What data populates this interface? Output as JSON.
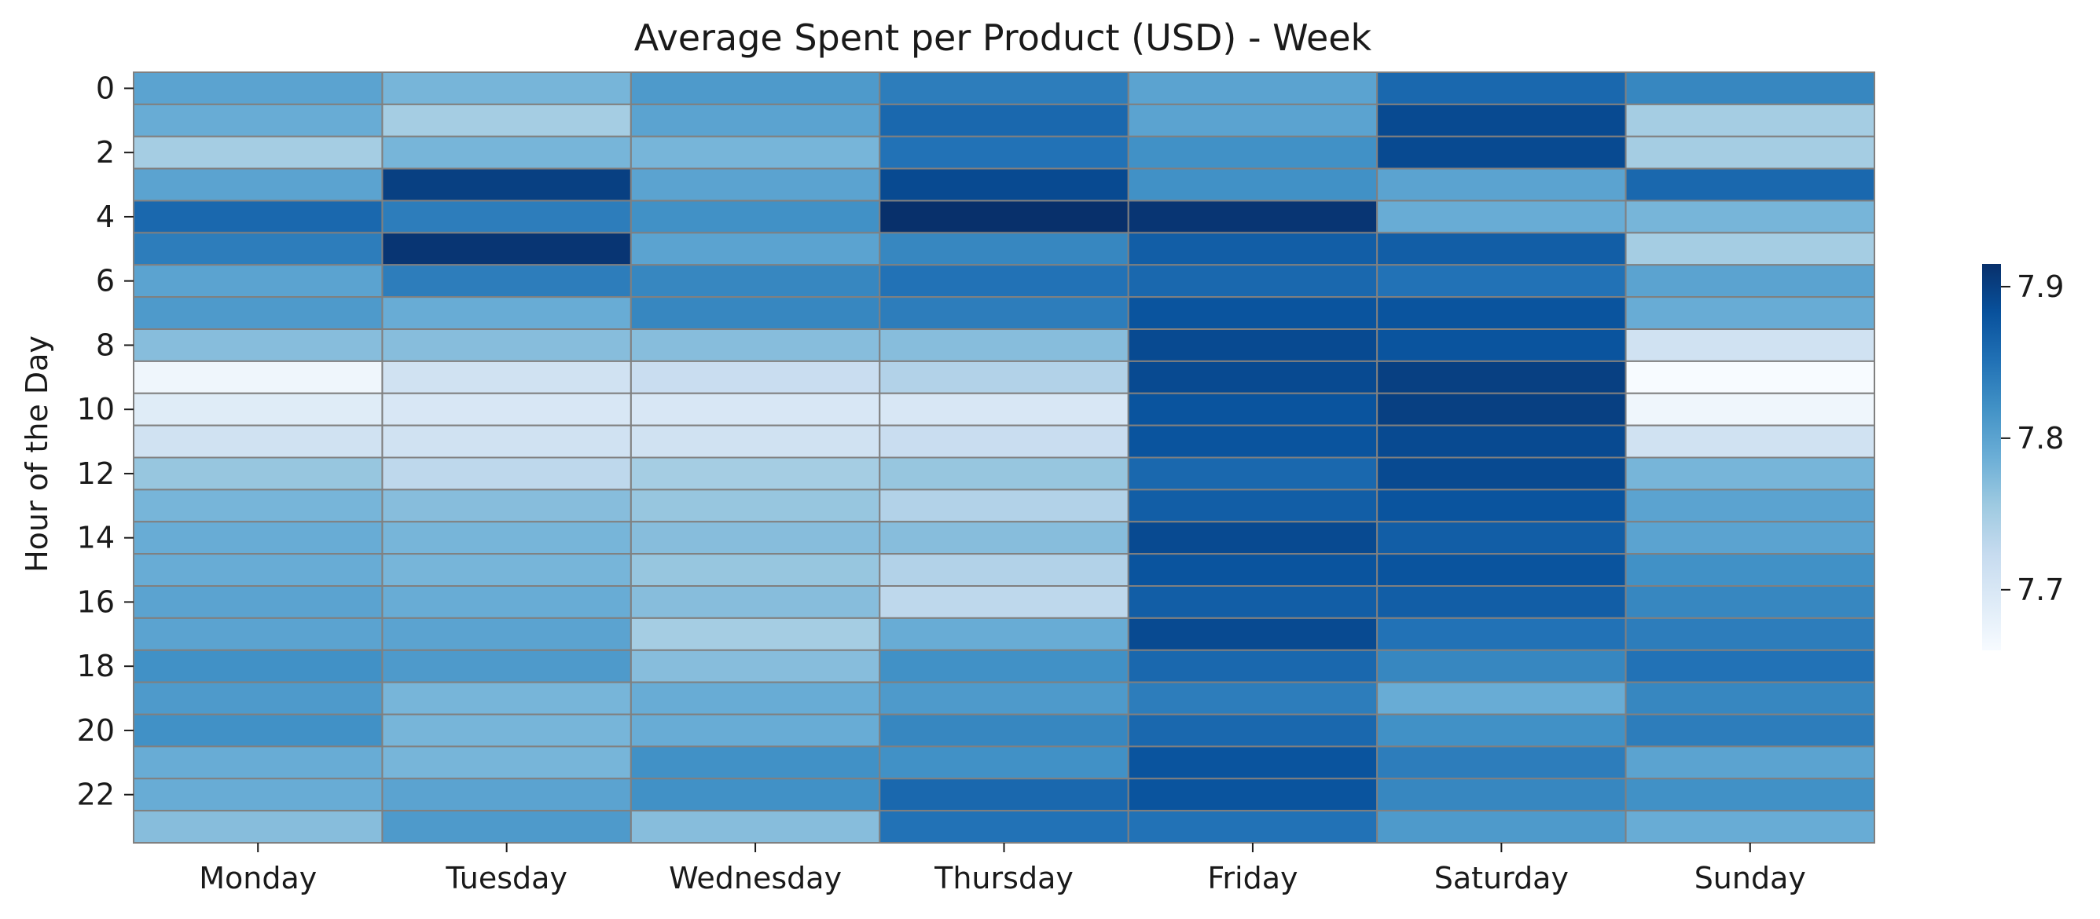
{
  "chart_data": {
    "type": "heatmap",
    "title": "Average Spent per Product (USD) - Week",
    "xlabel": "",
    "ylabel": "Hour of the Day",
    "x_categories": [
      "Monday",
      "Tuesday",
      "Wednesday",
      "Thursday",
      "Friday",
      "Saturday",
      "Sunday"
    ],
    "y_categories": [
      0,
      1,
      2,
      3,
      4,
      5,
      6,
      7,
      8,
      9,
      10,
      11,
      12,
      13,
      14,
      15,
      16,
      17,
      18,
      19,
      20,
      21,
      22,
      23
    ],
    "y_tick_labels": [
      "0",
      "2",
      "4",
      "6",
      "8",
      "10",
      "12",
      "14",
      "16",
      "18",
      "20",
      "22"
    ],
    "values": [
      [
        7.8,
        7.78,
        7.81,
        7.84,
        7.8,
        7.86,
        7.83
      ],
      [
        7.79,
        7.75,
        7.8,
        7.86,
        7.8,
        7.89,
        7.75
      ],
      [
        7.75,
        7.78,
        7.78,
        7.85,
        7.82,
        7.89,
        7.75
      ],
      [
        7.8,
        7.9,
        7.8,
        7.89,
        7.82,
        7.8,
        7.86
      ],
      [
        7.86,
        7.84,
        7.82,
        7.92,
        7.91,
        7.79,
        7.78
      ],
      [
        7.84,
        7.91,
        7.8,
        7.83,
        7.87,
        7.87,
        7.75
      ],
      [
        7.8,
        7.84,
        7.83,
        7.85,
        7.86,
        7.85,
        7.8
      ],
      [
        7.81,
        7.79,
        7.83,
        7.84,
        7.88,
        7.88,
        7.79
      ],
      [
        7.77,
        7.77,
        7.77,
        7.77,
        7.89,
        7.88,
        7.71
      ],
      [
        7.67,
        7.71,
        7.72,
        7.74,
        7.89,
        7.9,
        7.66
      ],
      [
        7.69,
        7.7,
        7.7,
        7.7,
        7.88,
        7.9,
        7.67
      ],
      [
        7.71,
        7.71,
        7.71,
        7.72,
        7.88,
        7.89,
        7.71
      ],
      [
        7.76,
        7.73,
        7.75,
        7.76,
        7.86,
        7.89,
        7.78
      ],
      [
        7.78,
        7.77,
        7.76,
        7.74,
        7.87,
        7.88,
        7.8
      ],
      [
        7.79,
        7.78,
        7.77,
        7.77,
        7.89,
        7.87,
        7.8
      ],
      [
        7.79,
        7.78,
        7.76,
        7.74,
        7.88,
        7.88,
        7.82
      ],
      [
        7.8,
        7.79,
        7.77,
        7.73,
        7.87,
        7.87,
        7.83
      ],
      [
        7.8,
        7.8,
        7.75,
        7.79,
        7.89,
        7.85,
        7.84
      ],
      [
        7.82,
        7.81,
        7.77,
        7.82,
        7.86,
        7.83,
        7.85
      ],
      [
        7.81,
        7.78,
        7.79,
        7.81,
        7.84,
        7.79,
        7.83
      ],
      [
        7.82,
        7.78,
        7.79,
        7.83,
        7.86,
        7.82,
        7.84
      ],
      [
        7.79,
        7.78,
        7.82,
        7.82,
        7.88,
        7.84,
        7.8
      ],
      [
        7.79,
        7.8,
        7.82,
        7.86,
        7.88,
        7.83,
        7.82
      ],
      [
        7.77,
        7.81,
        7.77,
        7.85,
        7.85,
        7.81,
        7.79
      ]
    ],
    "colormap": "Blues",
    "vmin": 7.66,
    "vmax": 7.915,
    "colorbar_ticks": [
      7.7,
      7.8,
      7.9
    ],
    "colorbar_tick_labels": [
      "7.7",
      "7.8",
      "7.9"
    ],
    "cell_border_color": "#808080",
    "grid": false
  }
}
